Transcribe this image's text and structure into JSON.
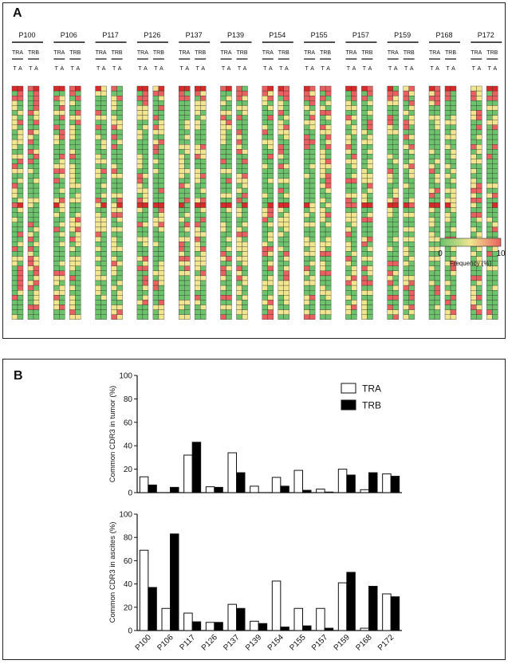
{
  "panel_a": {
    "letter": "A",
    "patients": [
      "P100",
      "P106",
      "P117",
      "P126",
      "P137",
      "P139",
      "P154",
      "P155",
      "P157",
      "P159",
      "P168",
      "P172"
    ],
    "chain_labels": [
      "TRA",
      "TRB"
    ],
    "sample_labels": [
      "T",
      "A"
    ],
    "legend": {
      "min_label": "0",
      "max_label": "10",
      "title": "Frequency  (%)"
    },
    "heatmap_colors": {
      "low": "#6cc36c",
      "mid": "#f2e58f",
      "high": "#e8605f",
      "marked": "#d92a2a",
      "mark_glyph": "#"
    }
  },
  "chart_data": [
    {
      "type": "bar",
      "panel": "B-top",
      "ylabel": "Common CDR3 in tumor (%)",
      "ylim": [
        0,
        100
      ],
      "yticks": [
        0,
        20,
        40,
        60,
        80,
        100
      ],
      "categories": [
        "P100",
        "P106",
        "P117",
        "P126",
        "P137",
        "P139",
        "P154",
        "P155",
        "P157",
        "P159",
        "P168",
        "P172"
      ],
      "series": [
        {
          "name": "TRA",
          "fill": "#ffffff",
          "values": [
            13.5,
            0,
            32,
            5,
            34,
            5.5,
            13,
            19,
            3,
            20,
            2.5,
            16
          ]
        },
        {
          "name": "TRB",
          "fill": "#000000",
          "values": [
            6.5,
            4.5,
            43,
            4.5,
            17,
            0,
            5.5,
            2,
            0.5,
            15,
            17,
            14
          ]
        }
      ]
    },
    {
      "type": "bar",
      "panel": "B-bottom",
      "ylabel": "Common CDR3 in ascites (%)",
      "ylim": [
        0,
        100
      ],
      "yticks": [
        0,
        20,
        40,
        60,
        80,
        100
      ],
      "categories": [
        "P100",
        "P106",
        "P117",
        "P126",
        "P137",
        "P139",
        "P154",
        "P155",
        "P157",
        "P159",
        "P168",
        "P172"
      ],
      "series": [
        {
          "name": "TRA",
          "fill": "#ffffff",
          "values": [
            69,
            19,
            15,
            7,
            22.5,
            8,
            42.5,
            19,
            19,
            41,
            2,
            31.5
          ]
        },
        {
          "name": "TRB",
          "fill": "#000000",
          "values": [
            37,
            83,
            7.5,
            7,
            19,
            6,
            3,
            4,
            2,
            50,
            38,
            29
          ]
        }
      ]
    }
  ],
  "panel_b": {
    "letter": "B",
    "legend": [
      "TRA",
      "TRB"
    ]
  }
}
